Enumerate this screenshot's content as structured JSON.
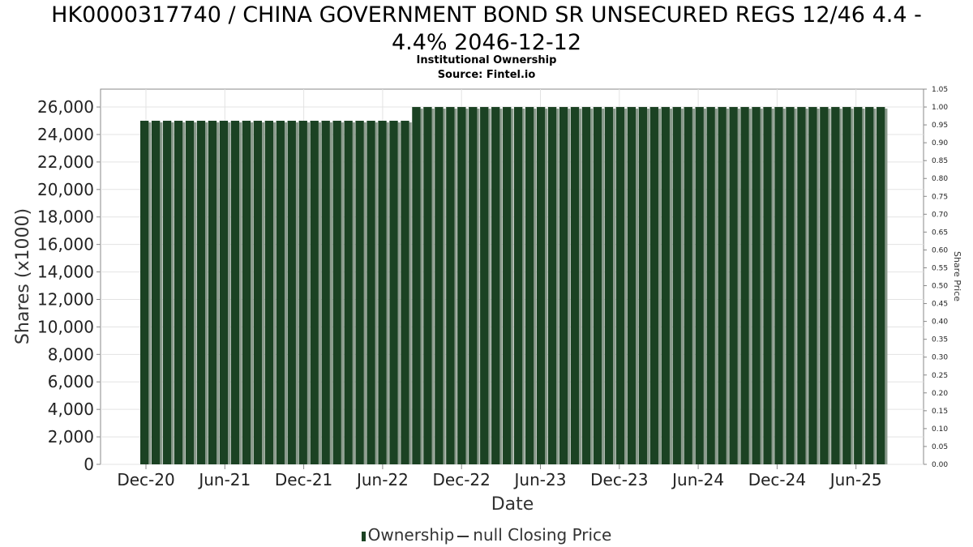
{
  "header": {
    "title_line1": "HK0000317740 / CHINA GOVERNMENT BOND SR UNSECURED REGS 12/46 4.4 -",
    "title_line2": "4.4% 2046-12-12",
    "subtitle_line1": "Institutional Ownership",
    "subtitle_line2": "Source: Fintel.io"
  },
  "legend": {
    "ownership_label": "Ownership",
    "price_label": "null Closing Price"
  },
  "colors": {
    "bar": "#1b4223",
    "bar_shadow": "#8a9a8c",
    "grid": "#e3e3e3",
    "axis": "#888888"
  },
  "chart_data": {
    "type": "bar",
    "xlabel": "Date",
    "ylabel": "Shares (x1000)",
    "y2label": "Share Price",
    "ylim": [
      0,
      27300
    ],
    "y2lim": [
      0,
      1.05
    ],
    "yticks": [
      0,
      2000,
      4000,
      6000,
      8000,
      10000,
      12000,
      14000,
      16000,
      18000,
      20000,
      22000,
      24000,
      26000
    ],
    "y2ticks": [
      "0.00",
      "0.05",
      "0.10",
      "0.15",
      "0.20",
      "0.25",
      "0.30",
      "0.35",
      "0.40",
      "0.45",
      "0.50",
      "0.55",
      "0.60",
      "0.65",
      "0.70",
      "0.75",
      "0.80",
      "0.85",
      "0.90",
      "0.95",
      "1.00",
      "1.05"
    ],
    "xticks": [
      "Dec-20",
      "Jun-21",
      "Dec-21",
      "Jun-22",
      "Dec-22",
      "Jun-23",
      "Dec-23",
      "Jun-24",
      "Dec-24",
      "Jun-25"
    ],
    "grid": true,
    "legend_position": "bottom",
    "series": [
      {
        "name": "Ownership",
        "values": [
          25000,
          25000,
          25000,
          25000,
          25000,
          25000,
          25000,
          25000,
          25000,
          25000,
          25000,
          25000,
          25000,
          25000,
          25000,
          25000,
          25000,
          25000,
          25000,
          25000,
          25000,
          25000,
          25000,
          25000,
          26000,
          26000,
          26000,
          26000,
          26000,
          26000,
          26000,
          26000,
          26000,
          26000,
          26000,
          26000,
          26000,
          26000,
          26000,
          26000,
          26000,
          26000,
          26000,
          26000,
          26000,
          26000,
          26000,
          26000,
          26000,
          26000,
          26000,
          26000,
          26000,
          26000,
          26000,
          26000,
          26000,
          26000,
          26000,
          26000,
          26000,
          26000,
          26000,
          26000,
          26000,
          26000
        ]
      }
    ]
  }
}
